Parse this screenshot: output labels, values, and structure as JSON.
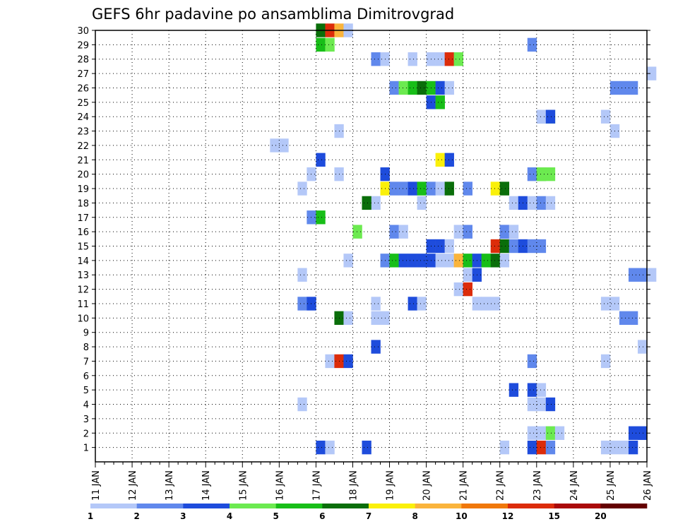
{
  "chart_data": {
    "type": "heatmap",
    "title": "GEFS 6hr padavine po ansamblima Dimitrovgrad",
    "x_tick_labels": [
      "11 JAN",
      "12 JAN",
      "13 JAN",
      "14 JAN",
      "15 JAN",
      "16 JAN",
      "17 JAN",
      "18 JAN",
      "19 JAN",
      "20 JAN",
      "21 JAN",
      "22 JAN",
      "23 JAN",
      "24 JAN",
      "25 JAN",
      "26 JAN"
    ],
    "y_tick_labels": [
      "1",
      "2",
      "3",
      "4",
      "5",
      "6",
      "7",
      "8",
      "9",
      "10",
      "11",
      "12",
      "13",
      "14",
      "15",
      "16",
      "17",
      "18",
      "19",
      "20",
      "21",
      "22",
      "23",
      "24",
      "25",
      "26",
      "27",
      "28",
      "29",
      "30"
    ],
    "xlim": [
      "11 JAN",
      "26 JAN"
    ],
    "steps_per_day": 4,
    "members": 30,
    "grid": "dotted",
    "colorbar": {
      "labels": [
        "1",
        "2",
        "3",
        "4",
        "5",
        "6",
        "7",
        "8",
        "10",
        "12",
        "15",
        "20"
      ],
      "colors": [
        "#b4c8f8",
        "#6088ec",
        "#1e4cdc",
        "#6cea50",
        "#18be18",
        "#0a6e0a",
        "#faf00a",
        "#fab43c",
        "#f0780a",
        "#dc2c0a",
        "#aa0a0a",
        "#640000"
      ]
    },
    "cells": [
      [
        0,
        5,
        4,
        3
      ],
      [
        0,
        5,
        5,
        1
      ],
      [
        0,
        7,
        1,
        3
      ],
      [
        0,
        10,
        4,
        1
      ],
      [
        0,
        11,
        3,
        3
      ],
      [
        0,
        11,
        4,
        10
      ],
      [
        0,
        11,
        5,
        2
      ],
      [
        0,
        13,
        3,
        1
      ],
      [
        0,
        13,
        4,
        1
      ],
      [
        0,
        14,
        1,
        1
      ],
      [
        0,
        14,
        2,
        3
      ],
      [
        1,
        11,
        3,
        1
      ],
      [
        1,
        11,
        4,
        20
      ],
      [
        1,
        11,
        5,
        4
      ],
      [
        1,
        11,
        6,
        1
      ],
      [
        1,
        14,
        2,
        3
      ],
      [
        1,
        14,
        3,
        3
      ],
      [
        3,
        5,
        2,
        1
      ],
      [
        3,
        11,
        3,
        1
      ],
      [
        3,
        11,
        4,
        1
      ],
      [
        3,
        11,
        5,
        3
      ],
      [
        4,
        11,
        1,
        3
      ],
      [
        4,
        11,
        3,
        3
      ],
      [
        4,
        11,
        4,
        1
      ],
      [
        6,
        6,
        1,
        1
      ],
      [
        6,
        6,
        2,
        10
      ],
      [
        6,
        6,
        3,
        3
      ],
      [
        6,
        11,
        3,
        2
      ],
      [
        6,
        13,
        3,
        1
      ],
      [
        7,
        7,
        2,
        3
      ],
      [
        7,
        14,
        3,
        1
      ],
      [
        9,
        6,
        2,
        6
      ],
      [
        9,
        6,
        3,
        1
      ],
      [
        9,
        7,
        2,
        1
      ],
      [
        9,
        7,
        3,
        1
      ],
      [
        9,
        14,
        1,
        2
      ],
      [
        9,
        14,
        2,
        2
      ],
      [
        10,
        5,
        2,
        2
      ],
      [
        10,
        5,
        3,
        3
      ],
      [
        10,
        7,
        2,
        1
      ],
      [
        10,
        8,
        2,
        3
      ],
      [
        10,
        8,
        3,
        1
      ],
      [
        10,
        10,
        1,
        1
      ],
      [
        10,
        10,
        2,
        1
      ],
      [
        10,
        10,
        3,
        1
      ],
      [
        10,
        13,
        3,
        1
      ],
      [
        10,
        14,
        0,
        1
      ],
      [
        11,
        9,
        3,
        1
      ],
      [
        11,
        10,
        0,
        10
      ],
      [
        12,
        5,
        2,
        1
      ],
      [
        12,
        10,
        0,
        1
      ],
      [
        12,
        10,
        1,
        3
      ],
      [
        12,
        14,
        2,
        2
      ],
      [
        12,
        14,
        3,
        2
      ],
      [
        12,
        15,
        0,
        1
      ],
      [
        13,
        6,
        3,
        1
      ],
      [
        13,
        7,
        3,
        2
      ],
      [
        13,
        8,
        0,
        5
      ],
      [
        13,
        8,
        1,
        3
      ],
      [
        13,
        8,
        2,
        3
      ],
      [
        13,
        8,
        3,
        3
      ],
      [
        13,
        9,
        0,
        3
      ],
      [
        13,
        9,
        1,
        1
      ],
      [
        13,
        9,
        2,
        1
      ],
      [
        13,
        9,
        3,
        8
      ],
      [
        13,
        10,
        0,
        5
      ],
      [
        13,
        10,
        1,
        3
      ],
      [
        13,
        10,
        2,
        5
      ],
      [
        13,
        10,
        3,
        6
      ],
      [
        13,
        11,
        0,
        1
      ],
      [
        14,
        9,
        0,
        3
      ],
      [
        14,
        9,
        1,
        3
      ],
      [
        14,
        9,
        2,
        1
      ],
      [
        14,
        10,
        3,
        10
      ],
      [
        14,
        11,
        0,
        6
      ],
      [
        14,
        11,
        1,
        2
      ],
      [
        14,
        11,
        2,
        3
      ],
      [
        14,
        11,
        3,
        2
      ],
      [
        14,
        11,
        4,
        2
      ],
      [
        15,
        7,
        0,
        4
      ],
      [
        15,
        8,
        0,
        2
      ],
      [
        15,
        8,
        1,
        1
      ],
      [
        15,
        9,
        3,
        1
      ],
      [
        15,
        9,
        4,
        2
      ],
      [
        15,
        10,
        4,
        3
      ],
      [
        15,
        10,
        5,
        2
      ],
      [
        15,
        11,
        0,
        2
      ],
      [
        15,
        11,
        1,
        1
      ],
      [
        16,
        5,
        3,
        2
      ],
      [
        16,
        6,
        0,
        5
      ],
      [
        17,
        7,
        2,
        1
      ],
      [
        17,
        7,
        1,
        6
      ],
      [
        17,
        8,
        3,
        1
      ],
      [
        17,
        11,
        1,
        1
      ],
      [
        17,
        11,
        2,
        3
      ],
      [
        17,
        11,
        3,
        1
      ],
      [
        17,
        12,
        0,
        2
      ],
      [
        17,
        12,
        1,
        1
      ],
      [
        18,
        5,
        2,
        1
      ],
      [
        18,
        7,
        3,
        7
      ],
      [
        18,
        8,
        0,
        2
      ],
      [
        18,
        8,
        1,
        2
      ],
      [
        18,
        8,
        2,
        3
      ],
      [
        18,
        8,
        3,
        5
      ],
      [
        18,
        9,
        0,
        2
      ],
      [
        18,
        9,
        1,
        1
      ],
      [
        18,
        9,
        2,
        6
      ],
      [
        18,
        10,
        0,
        2
      ],
      [
        18,
        10,
        3,
        7
      ],
      [
        18,
        11,
        0,
        6
      ],
      [
        19,
        5,
        3,
        1
      ],
      [
        19,
        6,
        2,
        1
      ],
      [
        19,
        7,
        3,
        3
      ],
      [
        19,
        11,
        3,
        2
      ],
      [
        19,
        11,
        4,
        5
      ],
      [
        19,
        12,
        0,
        4
      ],
      [
        19,
        12,
        1,
        4
      ],
      [
        20,
        6,
        0,
        3
      ],
      [
        20,
        9,
        1,
        7
      ],
      [
        20,
        9,
        2,
        3
      ],
      [
        21,
        4,
        3,
        1
      ],
      [
        21,
        5,
        0,
        1
      ],
      [
        22,
        6,
        2,
        1
      ],
      [
        22,
        14,
        0,
        1
      ],
      [
        23,
        11,
        4,
        2
      ],
      [
        23,
        11,
        5,
        4
      ],
      [
        23,
        12,
        0,
        1
      ],
      [
        23,
        12,
        1,
        3
      ],
      [
        23,
        13,
        3,
        1
      ],
      [
        24,
        9,
        0,
        3
      ],
      [
        24,
        9,
        1,
        5
      ],
      [
        25,
        8,
        0,
        2
      ],
      [
        25,
        8,
        1,
        4
      ],
      [
        25,
        8,
        2,
        5
      ],
      [
        25,
        8,
        3,
        6
      ],
      [
        25,
        9,
        0,
        5
      ],
      [
        25,
        9,
        1,
        3
      ],
      [
        25,
        9,
        2,
        1
      ],
      [
        25,
        14,
        0,
        2
      ],
      [
        25,
        14,
        1,
        2
      ],
      [
        25,
        14,
        2,
        2
      ],
      [
        26,
        15,
        0,
        1
      ],
      [
        27,
        7,
        2,
        2
      ],
      [
        27,
        7,
        3,
        1
      ],
      [
        27,
        8,
        2,
        1
      ],
      [
        27,
        9,
        0,
        1
      ],
      [
        27,
        9,
        1,
        1
      ],
      [
        27,
        9,
        2,
        10
      ],
      [
        27,
        9,
        3,
        4
      ],
      [
        28,
        6,
        0,
        5
      ],
      [
        28,
        6,
        1,
        4
      ],
      [
        28,
        11,
        3,
        2
      ],
      [
        29,
        6,
        0,
        6
      ],
      [
        29,
        6,
        1,
        10
      ],
      [
        29,
        6,
        2,
        8
      ],
      [
        29,
        6,
        3,
        1
      ]
    ]
  }
}
